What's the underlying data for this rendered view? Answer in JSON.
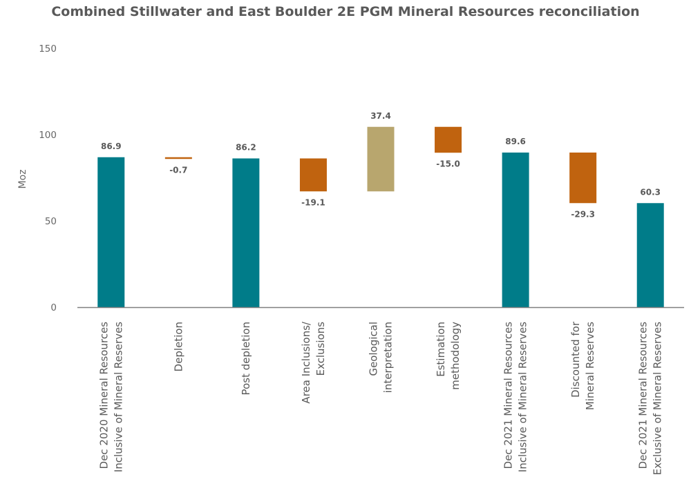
{
  "chart_data": {
    "type": "bar",
    "subtype": "waterfall",
    "title": "Combined Stillwater and East Boulder 2E PGM Mineral Resources reconciliation",
    "xlabel": "",
    "ylabel": "Moz",
    "ylim": [
      0,
      150
    ],
    "yticks": [
      0,
      50,
      100,
      150
    ],
    "grid": false,
    "categories": [
      [
        "Dec 2020 Mineral Resources",
        "Inclusive of Mineral Reserves"
      ],
      [
        "Depletion"
      ],
      [
        "Post depletion"
      ],
      [
        "Area Inclusions/",
        "Exclusions"
      ],
      [
        "Geological",
        "interpretation"
      ],
      [
        "Estimation",
        "methodology"
      ],
      [
        "Dec 2021 Mineral Resources",
        "Inclusive of Mineral Reserves"
      ],
      [
        "Discounted for",
        "Mineral Reserves"
      ],
      [
        "Dec 2021 Mineral Resources",
        "Exclusive of Mineral Reserves"
      ]
    ],
    "bars": [
      {
        "kind": "total",
        "start": 0,
        "end": 86.9,
        "label": "86.9"
      },
      {
        "kind": "decrease",
        "start": 86.9,
        "end": 86.2,
        "label": "-0.7"
      },
      {
        "kind": "total",
        "start": 0,
        "end": 86.2,
        "label": "86.2"
      },
      {
        "kind": "decrease",
        "start": 86.2,
        "end": 67.1,
        "label": "-19.1"
      },
      {
        "kind": "increase",
        "start": 67.1,
        "end": 104.5,
        "label": "37.4"
      },
      {
        "kind": "decrease",
        "start": 104.5,
        "end": 89.5,
        "label": "-15.0"
      },
      {
        "kind": "total",
        "start": 0,
        "end": 89.6,
        "label": "89.6"
      },
      {
        "kind": "decrease",
        "start": 89.6,
        "end": 60.3,
        "label": "-29.3"
      },
      {
        "kind": "total",
        "start": 0,
        "end": 60.3,
        "label": "60.3"
      }
    ],
    "colors": {
      "total": "#007c89",
      "decrease": "#c0630f",
      "increase": "#b8a66e",
      "axis": "#7f7f7f"
    }
  }
}
